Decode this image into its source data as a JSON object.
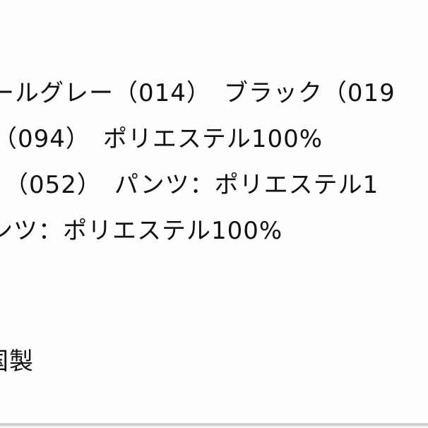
{
  "lines": [
    "ールグレー（014）　ブラック（019",
    "（094）　ポリエステル100%",
    "、（052）　パンツ：ポリエステル1",
    "ンツ：ポリエステル100%",
    "国製"
  ]
}
